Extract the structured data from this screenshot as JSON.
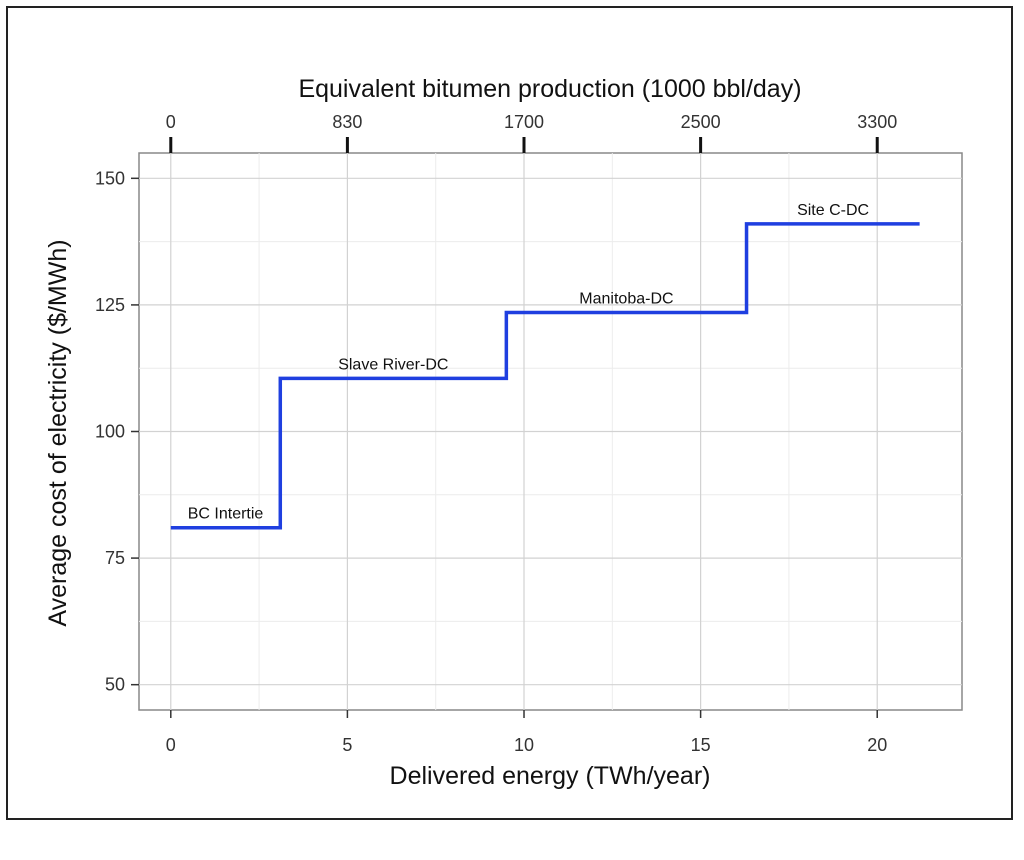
{
  "chart_data": {
    "type": "line",
    "subtype": "step",
    "xlabel": "Delivered energy (TWh/year)",
    "ylabel": "Average cost of electricity ($/MWh)",
    "top_axis_label": "Equivalent bitumen production (1000 bbl/day)",
    "xlim": [
      -0.9,
      22.4
    ],
    "ylim": [
      45,
      155
    ],
    "x_ticks": [
      0,
      5,
      10,
      15,
      20
    ],
    "y_ticks": [
      50,
      75,
      100,
      125,
      150
    ],
    "top_ticks": [
      {
        "x": 0,
        "label": "0"
      },
      {
        "x": 5,
        "label": "830"
      },
      {
        "x": 10,
        "label": "1700"
      },
      {
        "x": 15,
        "label": "2500"
      },
      {
        "x": 20,
        "label": "3300"
      }
    ],
    "grid": true,
    "line_color": "#1f3fe0",
    "segments": [
      {
        "name": "BC Intertie",
        "x_start": 0,
        "x_end": 3.1,
        "y": 81
      },
      {
        "name": "Slave River-DC",
        "x_start": 3.1,
        "x_end": 9.5,
        "y": 110.5
      },
      {
        "name": "Manitoba-DC",
        "x_start": 9.5,
        "x_end": 16.3,
        "y": 123.5
      },
      {
        "name": "Site C-DC",
        "x_start": 16.3,
        "x_end": 21.2,
        "y": 141
      }
    ]
  }
}
